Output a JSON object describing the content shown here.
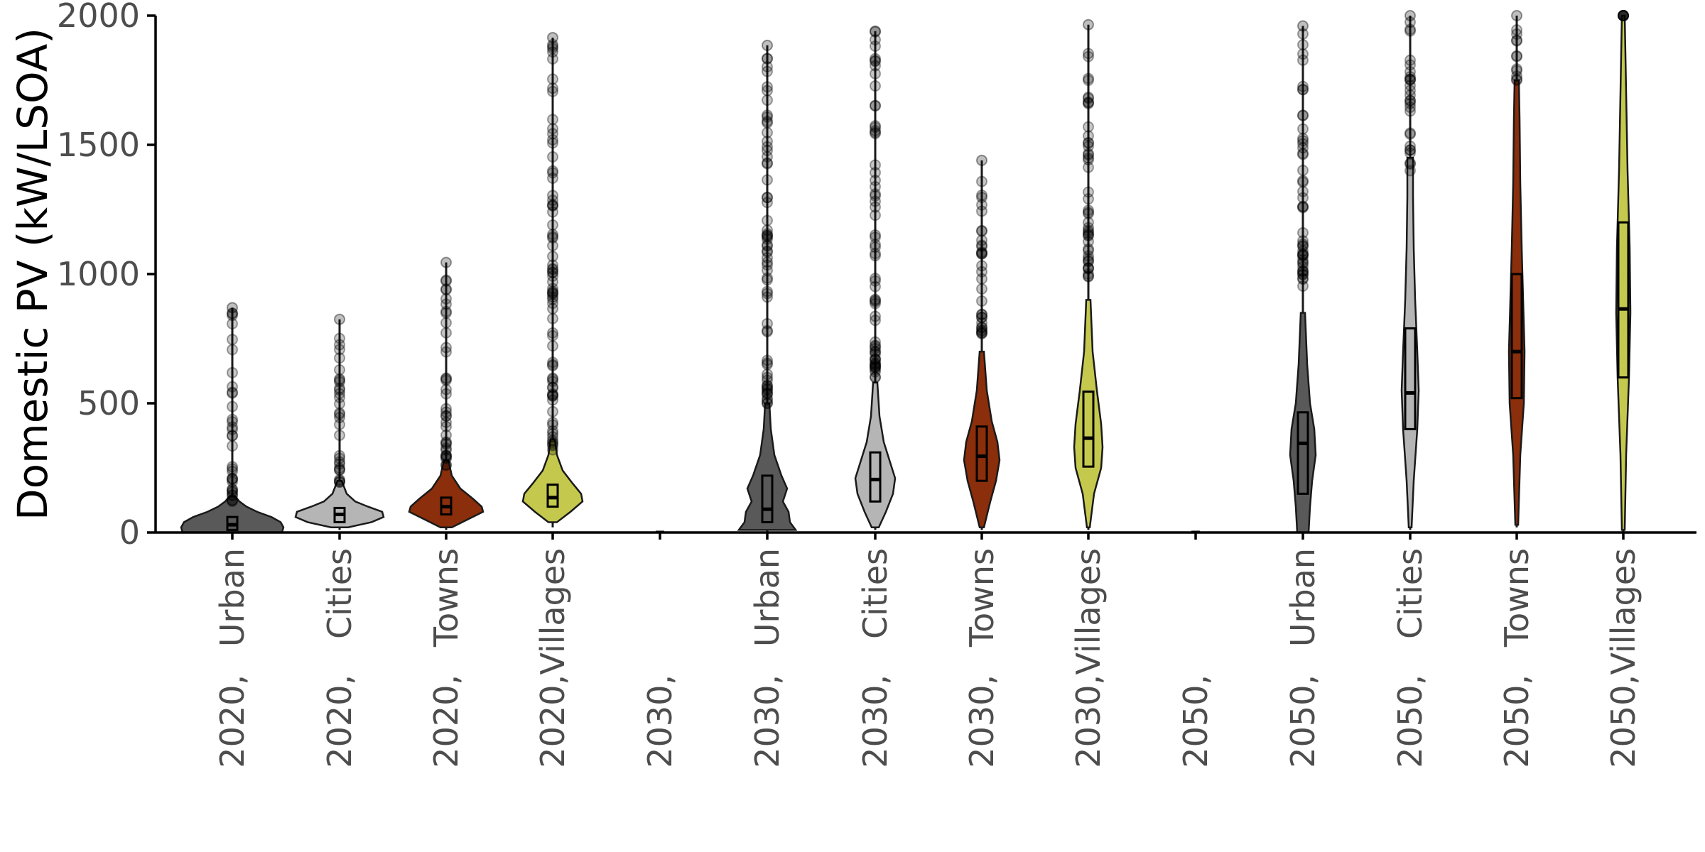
{
  "chart_data": {
    "type": "violin",
    "title": "",
    "xlabel": "",
    "ylabel": "Domestic PV (kW/LSOA)",
    "ylim": [
      0,
      2000
    ],
    "yticks": [
      0,
      500,
      1000,
      1500,
      2000
    ],
    "grid": false,
    "legend": "none",
    "categories": [
      "2020, Urban",
      "2020, Cities",
      "2020, Towns",
      "2020, Villages",
      "2030,",
      "2030, Urban",
      "2030, Cities",
      "2030, Towns",
      "2030, Villages",
      "2050,",
      "2050, Urban",
      "2050, Cities",
      "2050, Towns",
      "2050, Villages"
    ],
    "tick_labels": [
      {
        "line1": "Urban",
        "line2": "2020,"
      },
      {
        "line1": "Cities",
        "line2": "2020,"
      },
      {
        "line1": "Towns",
        "line2": "2020,"
      },
      {
        "line1": "Villages",
        "line2": "2020,"
      },
      {
        "line1": "",
        "line2": "2030,"
      },
      {
        "line1": "Urban",
        "line2": "2030,"
      },
      {
        "line1": "Cities",
        "line2": "2030,"
      },
      {
        "line1": "Towns",
        "line2": "2030,"
      },
      {
        "line1": "Villages",
        "line2": "2030,"
      },
      {
        "line1": "",
        "line2": "2050,"
      },
      {
        "line1": "Urban",
        "line2": "2050,"
      },
      {
        "line1": "Cities",
        "line2": "2050,"
      },
      {
        "line1": "Towns",
        "line2": "2050,"
      },
      {
        "line1": "Villages",
        "line2": "2050,"
      }
    ],
    "colors": {
      "Urban": "#595959",
      "Cities": "#b5b5b5",
      "Towns": "#8b2e0b",
      "Villages": "#c4c94e"
    },
    "series": [
      {
        "category": "2020, Urban",
        "type": "Urban",
        "min": 0,
        "q1": 10,
        "median": 30,
        "q3": 60,
        "whisker_high": 120,
        "max": 870,
        "density": [
          [
            0,
            70
          ],
          [
            20,
            72
          ],
          [
            40,
            68
          ],
          [
            60,
            55
          ],
          [
            80,
            35
          ],
          [
            100,
            20
          ],
          [
            120,
            10
          ],
          [
            140,
            4
          ]
        ]
      },
      {
        "category": "2020, Cities",
        "type": "Cities",
        "min": 10,
        "q1": 40,
        "median": 70,
        "q3": 95,
        "whisker_high": 190,
        "max": 825,
        "density": [
          [
            20,
            12
          ],
          [
            40,
            45
          ],
          [
            60,
            62
          ],
          [
            80,
            60
          ],
          [
            100,
            40
          ],
          [
            120,
            22
          ],
          [
            150,
            10
          ],
          [
            200,
            3
          ]
        ]
      },
      {
        "category": "2020, Towns",
        "type": "Towns",
        "min": 10,
        "q1": 70,
        "median": 100,
        "q3": 135,
        "whisker_high": 260,
        "max": 1045,
        "density": [
          [
            20,
            8
          ],
          [
            50,
            30
          ],
          [
            80,
            52
          ],
          [
            100,
            50
          ],
          [
            130,
            38
          ],
          [
            170,
            20
          ],
          [
            220,
            8
          ],
          [
            280,
            3
          ]
        ]
      },
      {
        "category": "2020, Villages",
        "type": "Villages",
        "min": 20,
        "q1": 100,
        "median": 135,
        "q3": 185,
        "whisker_high": 320,
        "max": 1915,
        "density": [
          [
            40,
            6
          ],
          [
            80,
            25
          ],
          [
            120,
            42
          ],
          [
            150,
            40
          ],
          [
            190,
            28
          ],
          [
            240,
            14
          ],
          [
            300,
            6
          ],
          [
            360,
            3
          ]
        ]
      },
      {
        "category": "2030,",
        "type": "",
        "min": 0,
        "q1": 0,
        "median": 0,
        "q3": 0,
        "whisker_high": 0,
        "max": 0,
        "density": []
      },
      {
        "category": "2030, Urban",
        "type": "Urban",
        "min": 0,
        "q1": 40,
        "median": 90,
        "q3": 220,
        "whisker_high": 500,
        "max": 1885,
        "density": [
          [
            10,
            40
          ],
          [
            40,
            32
          ],
          [
            80,
            30
          ],
          [
            120,
            22
          ],
          [
            170,
            28
          ],
          [
            220,
            20
          ],
          [
            300,
            10
          ],
          [
            400,
            5
          ],
          [
            500,
            3
          ]
        ]
      },
      {
        "category": "2030, Cities",
        "type": "Cities",
        "min": 10,
        "q1": 120,
        "median": 205,
        "q3": 310,
        "whisker_high": 600,
        "max": 1940,
        "density": [
          [
            20,
            5
          ],
          [
            80,
            15
          ],
          [
            150,
            25
          ],
          [
            210,
            28
          ],
          [
            280,
            20
          ],
          [
            350,
            12
          ],
          [
            450,
            6
          ],
          [
            580,
            3
          ]
        ]
      },
      {
        "category": "2030, Towns",
        "type": "Towns",
        "min": 10,
        "q1": 200,
        "median": 295,
        "q3": 410,
        "whisker_high": 760,
        "max": 1440,
        "density": [
          [
            20,
            3
          ],
          [
            120,
            12
          ],
          [
            200,
            20
          ],
          [
            280,
            25
          ],
          [
            350,
            22
          ],
          [
            430,
            14
          ],
          [
            550,
            7
          ],
          [
            700,
            3
          ]
        ]
      },
      {
        "category": "2030, Villages",
        "type": "Villages",
        "min": 10,
        "q1": 255,
        "median": 365,
        "q3": 545,
        "whisker_high": 990,
        "max": 1965,
        "density": [
          [
            20,
            2
          ],
          [
            150,
            8
          ],
          [
            250,
            18
          ],
          [
            330,
            20
          ],
          [
            420,
            18
          ],
          [
            550,
            12
          ],
          [
            700,
            6
          ],
          [
            900,
            3
          ]
        ]
      },
      {
        "category": "2050,",
        "type": "",
        "min": 0,
        "q1": 0,
        "median": 0,
        "q3": 0,
        "whisker_high": 0,
        "max": 0,
        "density": []
      },
      {
        "category": "2050, Urban",
        "type": "Urban",
        "min": 0,
        "q1": 150,
        "median": 345,
        "q3": 465,
        "whisker_high": 950,
        "max": 1960,
        "density": [
          [
            0,
            8
          ],
          [
            100,
            10
          ],
          [
            200,
            13
          ],
          [
            300,
            18
          ],
          [
            400,
            16
          ],
          [
            500,
            10
          ],
          [
            650,
            6
          ],
          [
            850,
            3
          ]
        ]
      },
      {
        "category": "2050, Cities",
        "type": "Cities",
        "min": 10,
        "q1": 400,
        "median": 540,
        "q3": 790,
        "whisker_high": 1400,
        "max": 2000,
        "density": [
          [
            20,
            2
          ],
          [
            200,
            5
          ],
          [
            400,
            10
          ],
          [
            550,
            12
          ],
          [
            700,
            10
          ],
          [
            900,
            7
          ],
          [
            1100,
            5
          ],
          [
            1300,
            4
          ],
          [
            1450,
            4
          ]
        ]
      },
      {
        "category": "2050, Towns",
        "type": "Towns",
        "min": 20,
        "q1": 520,
        "median": 700,
        "q3": 1000,
        "whisker_high": 1750,
        "max": 2000,
        "density": [
          [
            30,
            2
          ],
          [
            300,
            5
          ],
          [
            500,
            10
          ],
          [
            700,
            11
          ],
          [
            900,
            9
          ],
          [
            1100,
            7
          ],
          [
            1350,
            5
          ],
          [
            1600,
            4
          ],
          [
            1750,
            3
          ]
        ]
      },
      {
        "category": "2050, Villages",
        "type": "Villages",
        "min": 0,
        "q1": 600,
        "median": 865,
        "q3": 1200,
        "whisker_high": 2000,
        "max": 2000,
        "density": [
          [
            10,
            2
          ],
          [
            300,
            4
          ],
          [
            600,
            8
          ],
          [
            850,
            10
          ],
          [
            1100,
            9
          ],
          [
            1400,
            6
          ],
          [
            1700,
            4
          ],
          [
            2000,
            2
          ]
        ]
      }
    ]
  }
}
